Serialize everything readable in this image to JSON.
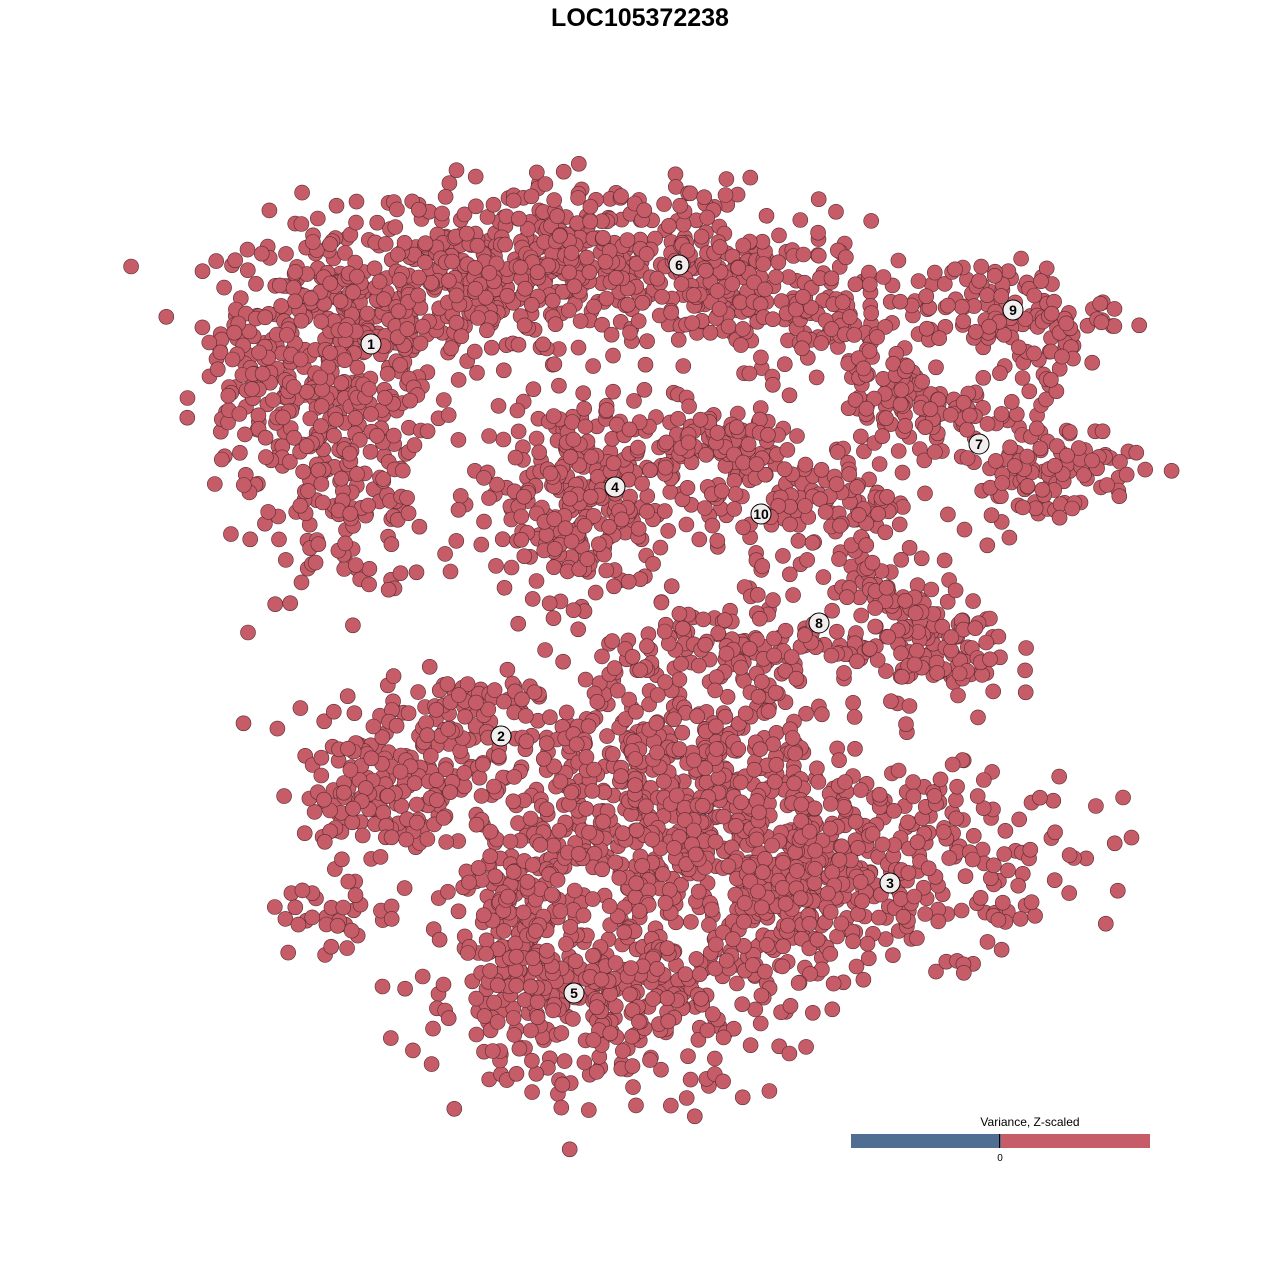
{
  "chart_data": {
    "type": "scatter",
    "title": "LOC105372238",
    "xlabel": "",
    "ylabel": "",
    "axes_visible": false,
    "grid": false,
    "xlim": [
      -50,
      50
    ],
    "ylim": [
      -50,
      50
    ],
    "point_color": "#C55C67",
    "point_stroke": "#5a2a30",
    "cluster_labels": [
      {
        "label": "1",
        "x": -26.9,
        "y": 29.6
      },
      {
        "label": "2",
        "x": -13.9,
        "y": -9.6
      },
      {
        "label": "3",
        "x": 25.0,
        "y": -24.3
      },
      {
        "label": "4",
        "x": -2.5,
        "y": 15.3
      },
      {
        "label": "5",
        "x": -6.6,
        "y": -35.3
      },
      {
        "label": "6",
        "x": 3.9,
        "y": 37.5
      },
      {
        "label": "7",
        "x": 33.9,
        "y": 19.6
      },
      {
        "label": "8",
        "x": 17.9,
        "y": 1.7
      },
      {
        "label": "9",
        "x": 37.3,
        "y": 33.0
      },
      {
        "label": "10",
        "x": 12.1,
        "y": 12.6
      }
    ],
    "cell_groups": [
      {
        "cluster": "1",
        "cx": -30,
        "cy": 31,
        "sx": 6,
        "sy": 5.5,
        "n": 350
      },
      {
        "cluster": "1",
        "cx": -29,
        "cy": 16,
        "sx": 4.5,
        "sy": 6,
        "n": 180
      },
      {
        "cluster": "1",
        "cx": -39,
        "cy": 24,
        "sx": 3,
        "sy": 5,
        "n": 70
      },
      {
        "cluster": "1",
        "cx": -17,
        "cy": 36,
        "sx": 6,
        "sy": 3.5,
        "n": 180
      },
      {
        "cluster": "6",
        "cx": -4,
        "cy": 38,
        "sx": 9,
        "sy": 4,
        "n": 350
      },
      {
        "cluster": "6",
        "cx": 11,
        "cy": 35,
        "sx": 6,
        "sy": 3.5,
        "n": 140
      },
      {
        "cluster": "6",
        "cx": 18,
        "cy": 31,
        "sx": 3,
        "sy": 2.5,
        "n": 45
      },
      {
        "cluster": "4",
        "cx": -6.2,
        "cy": 14.5,
        "sx": 5,
        "sy": 5,
        "n": 300
      },
      {
        "cluster": "10",
        "cx": 12,
        "cy": 16,
        "sx": 3,
        "sy": 4.5,
        "n": 90
      },
      {
        "cluster": "10",
        "cx": 7,
        "cy": 20,
        "sx": 4,
        "sy": 2,
        "n": 60
      },
      {
        "cluster": "7",
        "cx": 29,
        "cy": 23,
        "sx": 5,
        "sy": 2.5,
        "n": 110
      },
      {
        "cluster": "7",
        "cx": 40,
        "cy": 17,
        "sx": 5,
        "sy": 2.5,
        "n": 110
      },
      {
        "cluster": "7",
        "cx": 24,
        "cy": 28,
        "sx": 2,
        "sy": 2,
        "n": 30
      },
      {
        "cluster": "9",
        "cx": 35,
        "cy": 33,
        "sx": 6,
        "sy": 2.5,
        "n": 110
      },
      {
        "cluster": "9",
        "cx": 41,
        "cy": 29,
        "sx": 1.5,
        "sy": 3,
        "n": 30
      },
      {
        "cluster": "8",
        "cx": 21,
        "cy": 11,
        "sx": 3,
        "sy": 5,
        "n": 90
      },
      {
        "cluster": "8",
        "cx": 29,
        "cy": -1,
        "sx": 4,
        "sy": 2.5,
        "n": 110
      },
      {
        "cluster": "8",
        "cx": 12,
        "cy": 0,
        "sx": 5,
        "sy": 2,
        "n": 70
      },
      {
        "cluster": "8",
        "cx": 26,
        "cy": 4,
        "sx": 2,
        "sy": 2.5,
        "n": 30
      },
      {
        "cluster": "2",
        "cx": -22,
        "cy": -11,
        "sx": 6,
        "sy": 3,
        "n": 140
      },
      {
        "cluster": "2",
        "cx": -26,
        "cy": -17,
        "sx": 4,
        "sy": 2.5,
        "n": 90
      },
      {
        "cluster": "2",
        "cx": -31,
        "cy": -28,
        "sx": 3,
        "sy": 2,
        "n": 30
      },
      {
        "cluster": "2",
        "cx": -16,
        "cy": -6,
        "sx": 2.5,
        "sy": 1.5,
        "n": 30
      },
      {
        "cluster": "",
        "cx": 4,
        "cy": -12,
        "sx": 10,
        "sy": 7,
        "n": 500
      },
      {
        "cluster": "",
        "cx": 0,
        "cy": -22,
        "sx": 9,
        "sy": 5,
        "n": 280
      },
      {
        "cluster": "3",
        "cx": 26,
        "cy": -22,
        "sx": 9,
        "sy": 4.5,
        "n": 280
      },
      {
        "cluster": "3",
        "cx": 16,
        "cy": -26,
        "sx": 3,
        "sy": 5,
        "n": 110
      },
      {
        "cluster": "5",
        "cx": -4,
        "cy": -36,
        "sx": 9,
        "sy": 4.5,
        "n": 350
      },
      {
        "cluster": "5",
        "cx": -12,
        "cy": -29,
        "sx": 3,
        "sy": 5,
        "n": 110
      }
    ],
    "legend": {
      "title": "Variance, Z-scaled",
      "placement": "bottom-right",
      "tick_label": "0",
      "low_color": "#506E91",
      "high_color": "#C55C67"
    }
  }
}
